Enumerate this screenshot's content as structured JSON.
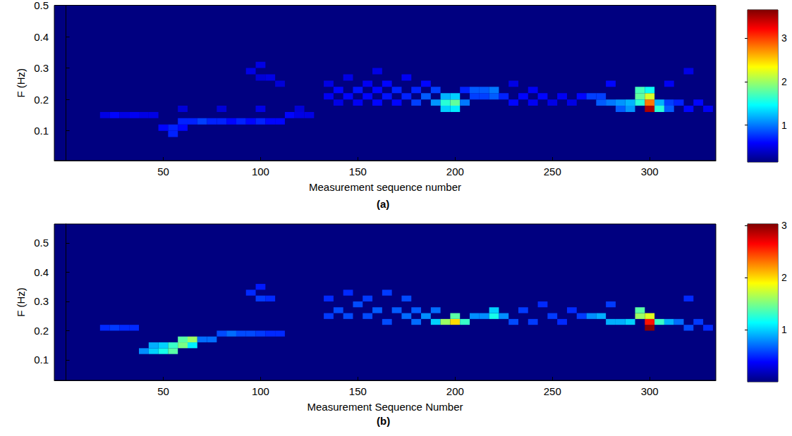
{
  "chart_data": [
    {
      "type": "heatmap",
      "panel_label": "(a)",
      "x_label": "Measurement sequence number",
      "y_label": "F (Hz)",
      "xlim": [
        -6,
        334
      ],
      "xticks": [
        50,
        100,
        150,
        200,
        250,
        300
      ],
      "ylim": [
        0.005,
        0.5
      ],
      "yticks": [
        0.1,
        0.2,
        0.3,
        0.4,
        0.5
      ],
      "grid": false,
      "cell_size": [
        5,
        0.02
      ],
      "colorbar": {
        "range": [
          0.15,
          3.65
        ],
        "ticks": [
          1,
          2,
          3
        ]
      },
      "cells": [
        [
          20,
          0.15,
          0.5
        ],
        [
          25,
          0.15,
          0.6
        ],
        [
          30,
          0.15,
          0.5
        ],
        [
          35,
          0.15,
          0.55
        ],
        [
          40,
          0.15,
          0.5
        ],
        [
          45,
          0.15,
          0.5
        ],
        [
          50,
          0.11,
          0.6
        ],
        [
          55,
          0.09,
          0.7
        ],
        [
          55,
          0.11,
          0.7
        ],
        [
          60,
          0.11,
          0.6
        ],
        [
          60,
          0.13,
          0.7
        ],
        [
          65,
          0.13,
          0.7
        ],
        [
          70,
          0.13,
          0.8
        ],
        [
          75,
          0.13,
          0.7
        ],
        [
          80,
          0.13,
          0.7
        ],
        [
          85,
          0.13,
          0.6
        ],
        [
          90,
          0.13,
          0.7
        ],
        [
          95,
          0.13,
          0.6
        ],
        [
          100,
          0.13,
          0.7
        ],
        [
          105,
          0.13,
          0.6
        ],
        [
          110,
          0.13,
          0.6
        ],
        [
          115,
          0.15,
          0.6
        ],
        [
          120,
          0.15,
          0.5
        ],
        [
          125,
          0.15,
          0.5
        ],
        [
          60,
          0.17,
          0.45
        ],
        [
          80,
          0.17,
          0.45
        ],
        [
          100,
          0.17,
          0.5
        ],
        [
          120,
          0.17,
          0.45
        ],
        [
          95,
          0.29,
          0.5
        ],
        [
          100,
          0.31,
          0.5
        ],
        [
          100,
          0.27,
          0.45
        ],
        [
          105,
          0.27,
          0.5
        ],
        [
          110,
          0.25,
          0.45
        ],
        [
          135,
          0.21,
          0.55
        ],
        [
          135,
          0.25,
          0.5
        ],
        [
          140,
          0.19,
          0.5
        ],
        [
          140,
          0.23,
          0.6
        ],
        [
          145,
          0.21,
          0.6
        ],
        [
          145,
          0.27,
          0.5
        ],
        [
          150,
          0.19,
          0.55
        ],
        [
          150,
          0.23,
          0.65
        ],
        [
          155,
          0.21,
          0.6
        ],
        [
          155,
          0.25,
          0.55
        ],
        [
          160,
          0.19,
          0.6
        ],
        [
          160,
          0.23,
          0.6
        ],
        [
          160,
          0.29,
          0.5
        ],
        [
          165,
          0.21,
          0.65
        ],
        [
          165,
          0.25,
          0.6
        ],
        [
          170,
          0.19,
          0.6
        ],
        [
          170,
          0.23,
          0.7
        ],
        [
          175,
          0.21,
          0.7
        ],
        [
          175,
          0.27,
          0.55
        ],
        [
          180,
          0.19,
          0.8
        ],
        [
          180,
          0.23,
          0.7
        ],
        [
          185,
          0.21,
          0.9
        ],
        [
          185,
          0.25,
          0.6
        ],
        [
          190,
          0.19,
          1.1
        ],
        [
          190,
          0.23,
          0.8
        ],
        [
          195,
          0.17,
          1.3
        ],
        [
          195,
          0.19,
          1.6
        ],
        [
          195,
          0.21,
          1.2
        ],
        [
          200,
          0.17,
          1.4
        ],
        [
          200,
          0.19,
          1.8
        ],
        [
          200,
          0.21,
          1.3
        ],
        [
          205,
          0.19,
          1.0
        ],
        [
          205,
          0.23,
          0.7
        ],
        [
          210,
          0.21,
          0.8
        ],
        [
          210,
          0.23,
          0.9
        ],
        [
          215,
          0.21,
          0.8
        ],
        [
          215,
          0.23,
          0.9
        ],
        [
          220,
          0.21,
          0.9
        ],
        [
          220,
          0.23,
          1.0
        ],
        [
          225,
          0.21,
          0.7
        ],
        [
          230,
          0.19,
          0.6
        ],
        [
          230,
          0.25,
          0.5
        ],
        [
          235,
          0.21,
          0.6
        ],
        [
          240,
          0.19,
          0.55
        ],
        [
          240,
          0.23,
          0.55
        ],
        [
          245,
          0.21,
          0.6
        ],
        [
          250,
          0.19,
          0.5
        ],
        [
          255,
          0.21,
          0.55
        ],
        [
          260,
          0.19,
          0.5
        ],
        [
          265,
          0.21,
          0.6
        ],
        [
          270,
          0.21,
          0.8
        ],
        [
          275,
          0.19,
          0.9
        ],
        [
          275,
          0.21,
          0.8
        ],
        [
          280,
          0.19,
          1.0
        ],
        [
          285,
          0.19,
          1.1
        ],
        [
          285,
          0.17,
          0.9
        ],
        [
          290,
          0.19,
          1.2
        ],
        [
          290,
          0.17,
          1.1
        ],
        [
          295,
          0.21,
          1.8
        ],
        [
          295,
          0.23,
          1.7
        ],
        [
          295,
          0.19,
          1.6
        ],
        [
          300,
          0.17,
          3.5
        ],
        [
          300,
          0.19,
          2.8
        ],
        [
          300,
          0.21,
          2.2
        ],
        [
          300,
          0.23,
          1.5
        ],
        [
          305,
          0.17,
          1.6
        ],
        [
          305,
          0.19,
          1.2
        ],
        [
          310,
          0.17,
          0.9
        ],
        [
          310,
          0.19,
          0.8
        ],
        [
          315,
          0.19,
          0.7
        ],
        [
          320,
          0.17,
          0.6
        ],
        [
          325,
          0.19,
          0.6
        ],
        [
          330,
          0.17,
          0.55
        ],
        [
          280,
          0.25,
          0.6
        ],
        [
          310,
          0.25,
          0.55
        ],
        [
          320,
          0.29,
          0.5
        ]
      ]
    },
    {
      "type": "heatmap",
      "panel_label": "(b)",
      "x_label": "Measurement Sequence Number",
      "y_label": "F (Hz)",
      "xlim": [
        -6,
        334
      ],
      "xticks": [
        50,
        100,
        150,
        200,
        250,
        300
      ],
      "ylim": [
        0.03,
        0.565
      ],
      "yticks": [
        0.1,
        0.2,
        0.3,
        0.4,
        0.5
      ],
      "grid": false,
      "cell_size": [
        5,
        0.02
      ],
      "colorbar": {
        "range": [
          0,
          3.03
        ],
        "ticks": [
          1,
          2,
          3
        ]
      },
      "cells": [
        [
          20,
          0.21,
          0.5
        ],
        [
          25,
          0.21,
          0.55
        ],
        [
          30,
          0.21,
          0.5
        ],
        [
          35,
          0.21,
          0.5
        ],
        [
          40,
          0.13,
          0.8
        ],
        [
          45,
          0.13,
          1.0
        ],
        [
          45,
          0.15,
          0.9
        ],
        [
          50,
          0.13,
          1.2
        ],
        [
          50,
          0.15,
          1.0
        ],
        [
          55,
          0.13,
          1.4
        ],
        [
          55,
          0.15,
          1.3
        ],
        [
          60,
          0.15,
          1.5
        ],
        [
          60,
          0.17,
          1.4
        ],
        [
          65,
          0.17,
          1.6
        ],
        [
          65,
          0.15,
          1.1
        ],
        [
          70,
          0.17,
          0.7
        ],
        [
          75,
          0.17,
          0.7
        ],
        [
          80,
          0.19,
          0.6
        ],
        [
          85,
          0.19,
          0.7
        ],
        [
          90,
          0.19,
          0.6
        ],
        [
          95,
          0.19,
          0.6
        ],
        [
          100,
          0.19,
          0.55
        ],
        [
          105,
          0.19,
          0.5
        ],
        [
          110,
          0.19,
          0.5
        ],
        [
          95,
          0.33,
          0.5
        ],
        [
          100,
          0.31,
          0.55
        ],
        [
          100,
          0.35,
          0.45
        ],
        [
          105,
          0.31,
          0.5
        ],
        [
          135,
          0.25,
          0.55
        ],
        [
          135,
          0.31,
          0.5
        ],
        [
          140,
          0.27,
          0.6
        ],
        [
          145,
          0.25,
          0.6
        ],
        [
          145,
          0.33,
          0.5
        ],
        [
          150,
          0.29,
          0.6
        ],
        [
          155,
          0.25,
          0.6
        ],
        [
          155,
          0.31,
          0.55
        ],
        [
          160,
          0.27,
          0.65
        ],
        [
          165,
          0.23,
          0.6
        ],
        [
          165,
          0.33,
          0.55
        ],
        [
          170,
          0.27,
          0.65
        ],
        [
          175,
          0.25,
          0.7
        ],
        [
          175,
          0.31,
          0.6
        ],
        [
          180,
          0.23,
          0.7
        ],
        [
          180,
          0.27,
          0.65
        ],
        [
          185,
          0.25,
          0.8
        ],
        [
          190,
          0.23,
          1.0
        ],
        [
          190,
          0.27,
          0.7
        ],
        [
          195,
          0.23,
          1.6
        ],
        [
          200,
          0.23,
          2.0
        ],
        [
          200,
          0.25,
          1.4
        ],
        [
          205,
          0.23,
          1.3
        ],
        [
          210,
          0.25,
          0.8
        ],
        [
          215,
          0.25,
          0.8
        ],
        [
          220,
          0.25,
          1.2
        ],
        [
          220,
          0.27,
          1.0
        ],
        [
          225,
          0.25,
          0.8
        ],
        [
          230,
          0.23,
          0.6
        ],
        [
          235,
          0.27,
          0.55
        ],
        [
          240,
          0.23,
          0.55
        ],
        [
          245,
          0.29,
          0.5
        ],
        [
          250,
          0.25,
          0.55
        ],
        [
          255,
          0.23,
          0.5
        ],
        [
          260,
          0.27,
          0.5
        ],
        [
          265,
          0.25,
          0.55
        ],
        [
          270,
          0.25,
          0.8
        ],
        [
          275,
          0.25,
          0.9
        ],
        [
          280,
          0.23,
          0.9
        ],
        [
          285,
          0.23,
          0.9
        ],
        [
          290,
          0.23,
          1.0
        ],
        [
          295,
          0.25,
          1.6
        ],
        [
          295,
          0.27,
          1.4
        ],
        [
          300,
          0.21,
          3.0
        ],
        [
          300,
          0.23,
          2.6
        ],
        [
          300,
          0.25,
          1.8
        ],
        [
          305,
          0.23,
          1.3
        ],
        [
          310,
          0.23,
          0.9
        ],
        [
          315,
          0.23,
          0.7
        ],
        [
          320,
          0.21,
          0.6
        ],
        [
          325,
          0.23,
          0.55
        ],
        [
          330,
          0.21,
          0.5
        ],
        [
          280,
          0.29,
          0.55
        ],
        [
          320,
          0.31,
          0.5
        ]
      ]
    }
  ]
}
